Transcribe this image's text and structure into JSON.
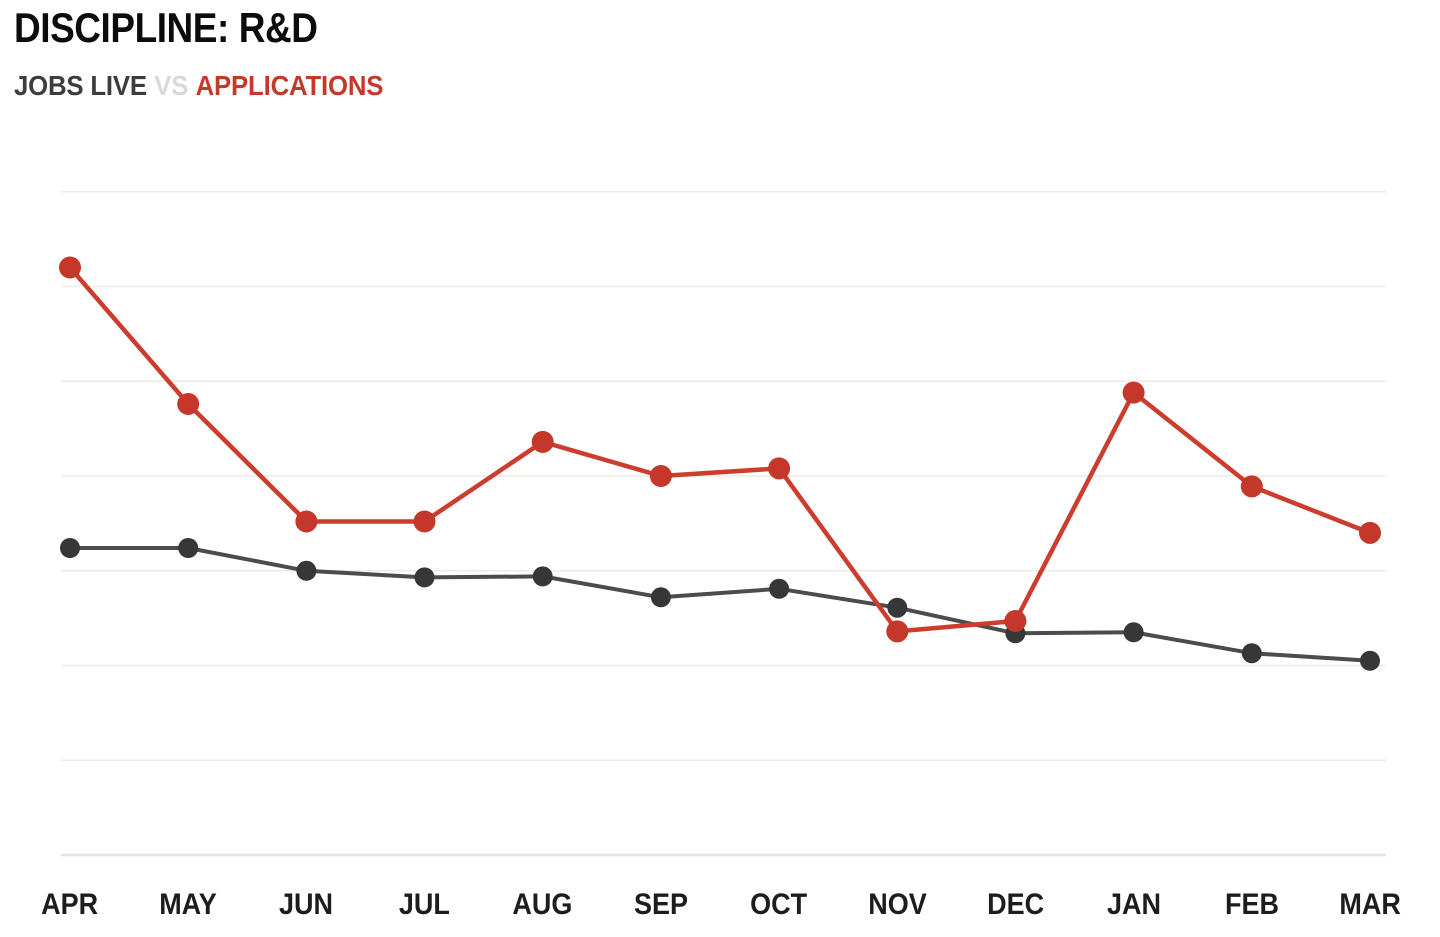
{
  "page": {
    "title": "DISCIPLINE: R&D",
    "legend": {
      "jobs_live": "JOBS LIVE",
      "vs": "VS",
      "applications": "APPLICATIONS"
    }
  },
  "colors": {
    "title_text": "#0c0c0c",
    "jobs_live_text": "#3d3d3d",
    "vs_text": "#d9d9d9",
    "applications_text": "#c5392b",
    "jobs_live_line": "#4c4c4c",
    "jobs_live_dot": "#373737",
    "applications_line": "#cc3d2e",
    "applications_dot": "#c5372a",
    "gridline": "#edebe3",
    "axis_line": "#e4e2da",
    "month_label_text": "#1d1d1d",
    "background": "#ffffff"
  },
  "chart_data": {
    "type": "line",
    "title": "DISCIPLINE: R&D",
    "subtitle": "JOBS LIVE VS APPLICATIONS",
    "categories": [
      "APR",
      "MAY",
      "JUN",
      "JUL",
      "AUG",
      "SEP",
      "OCT",
      "NOV",
      "DEC",
      "JAN",
      "FEB",
      "MAR"
    ],
    "series": [
      {
        "name": "JOBS LIVE",
        "values": [
          3.24,
          3.24,
          3.0,
          2.93,
          2.94,
          2.72,
          2.81,
          2.61,
          2.34,
          2.35,
          2.13,
          2.05
        ]
      },
      {
        "name": "APPLICATIONS",
        "values": [
          6.2,
          4.76,
          3.52,
          3.52,
          4.36,
          4.0,
          4.08,
          2.36,
          2.47,
          4.88,
          3.89,
          3.4
        ]
      }
    ],
    "y_axis": {
      "tick_labels_shown": false,
      "unit": "gridline-intervals above baseline",
      "ylim": [
        0,
        7
      ],
      "gridline_values": [
        1,
        2,
        3,
        4,
        5,
        6,
        7
      ]
    },
    "x_axis": {
      "tick_labels_shown": true
    },
    "grid": true,
    "legend_position": "subtitle-top-left"
  }
}
